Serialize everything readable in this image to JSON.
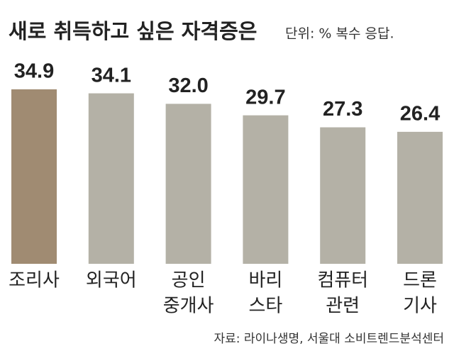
{
  "chart_data": {
    "type": "bar",
    "title": "새로 취득하고 싶은 자격증은",
    "subtitle": "단위: %  복수 응답.",
    "source": "자료: 라이나생명, 서울대 소비트렌드분석센터",
    "categories": [
      [
        "조리사"
      ],
      [
        "외국어"
      ],
      [
        "공인",
        "중개사"
      ],
      [
        "바리",
        "스타"
      ],
      [
        "컴퓨터",
        "관련"
      ],
      [
        "드론",
        "기사"
      ]
    ],
    "values": [
      34.9,
      34.1,
      32.0,
      29.7,
      27.3,
      26.4
    ],
    "value_labels": [
      "34.9",
      "34.1",
      "32.0",
      "29.7",
      "27.3",
      "26.4"
    ],
    "colors": [
      "#a08b72",
      "#b4b1a6",
      "#b4b1a6",
      "#b4b1a6",
      "#b4b1a6",
      "#b4b1a6"
    ]
  }
}
